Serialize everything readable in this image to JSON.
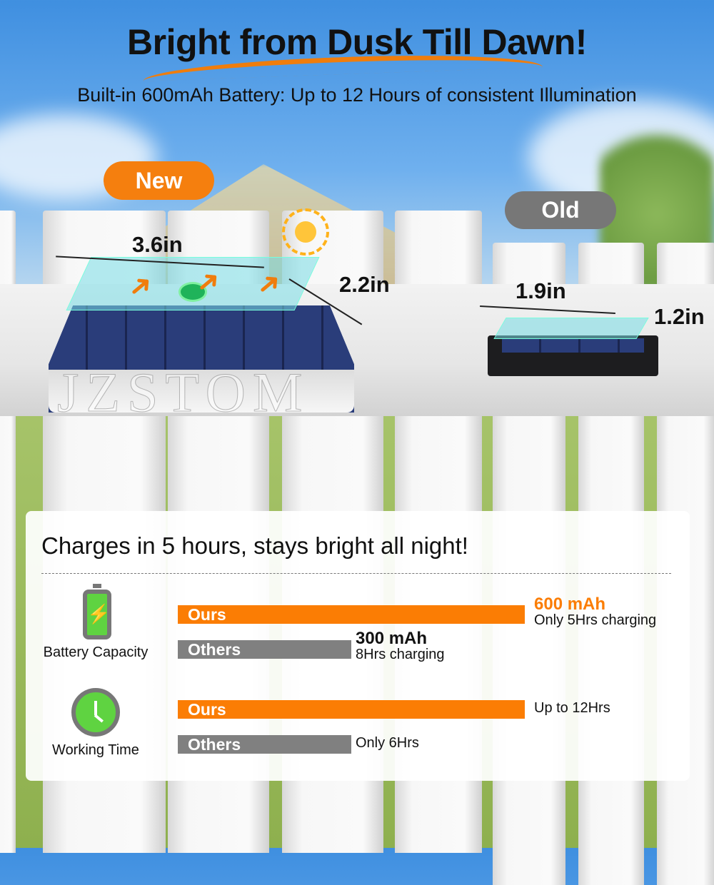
{
  "header": {
    "title": "Bright from Dusk Till Dawn!",
    "subtitle": "Built-in 600mAh Battery: Up to 12 Hours of consistent Illumination"
  },
  "product": {
    "new_label": "New",
    "old_label": "Old",
    "new_width": "3.6in",
    "new_depth": "2.2in",
    "old_width": "1.9in",
    "old_depth": "1.2in",
    "watermark": "JZSTOM"
  },
  "comparison": {
    "heading": "Charges in 5 hours, stays bright all night!",
    "colors": {
      "ours": "#fb7d04",
      "others": "#808080",
      "accent_text": "#fb7d04"
    },
    "rows": [
      {
        "label": "Battery Capacity",
        "icon": "battery-charging-icon",
        "ours": {
          "label": "Ours",
          "value": 600,
          "title": "600 mAh",
          "note": "Only 5Hrs charging"
        },
        "others": {
          "label": "Others",
          "value": 300,
          "title": "300 mAh",
          "note": "8Hrs charging"
        }
      },
      {
        "label": "Working Time",
        "icon": "clock-icon",
        "ours": {
          "label": "Ours",
          "value": 12,
          "note": "Up to 12Hrs"
        },
        "others": {
          "label": "Others",
          "value": 6,
          "note": "Only 6Hrs"
        }
      }
    ]
  }
}
